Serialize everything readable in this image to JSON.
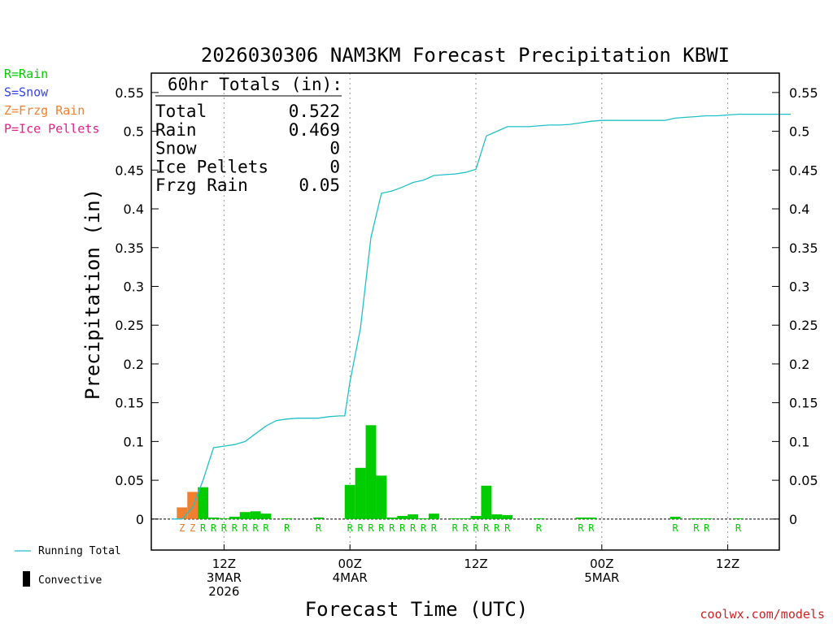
{
  "chart_data": {
    "type": "bar",
    "title": "2026030306 NAM3KM Forecast Precipitation KBWI",
    "xlabel": "Forecast Time (UTC)",
    "ylabel": "Precipitation (in)",
    "ylim": [
      -0.04,
      0.575
    ],
    "yticks": [
      "0",
      "0.05",
      "0.1",
      "0.15",
      "0.2",
      "0.25",
      "0.3",
      "0.35",
      "0.4",
      "0.45",
      "0.5",
      "0.55"
    ],
    "xlim": [
      0,
      61
    ],
    "xticks": [
      {
        "hour": 6,
        "lines": [
          "12Z",
          "3MAR",
          "2026"
        ]
      },
      {
        "hour": 18,
        "lines": [
          "00Z",
          "4MAR"
        ]
      },
      {
        "hour": 30,
        "lines": [
          "12Z"
        ]
      },
      {
        "hour": 42,
        "lines": [
          "00Z",
          "5MAR"
        ]
      },
      {
        "hour": 54,
        "lines": [
          "12Z"
        ]
      }
    ],
    "legend": [
      {
        "text": "R=Rain",
        "color": "#00cc00"
      },
      {
        "text": "S=Snow",
        "color": "#3344ee"
      },
      {
        "text": "Z=Frzg Rain",
        "color": "#f08030"
      },
      {
        "text": "P=Ice Pellets",
        "color": "#e0208a"
      }
    ],
    "bottom_legend": {
      "running_total": "Running Total",
      "convective": "Convective"
    },
    "totals_box": {
      "header": "60hr Totals (in):",
      "rows": [
        {
          "label": "Total",
          "value": "0.522"
        },
        {
          "label": "Rain",
          "value": "0.469"
        },
        {
          "label": "Snow",
          "value": "0"
        },
        {
          "label": "Ice Pellets",
          "value": "0"
        },
        {
          "label": "Frzg Rain",
          "value": "0.05"
        }
      ]
    },
    "watermark": "coolwx.com/models",
    "colors": {
      "rain": "#00cc00",
      "frzg": "#f08030",
      "running": "#20c0c8",
      "grid": "#999999"
    },
    "bars": [
      {
        "hour": 2,
        "value": 0.015,
        "ptype": "Z"
      },
      {
        "hour": 3,
        "value": 0.035,
        "ptype": "Z"
      },
      {
        "hour": 4,
        "value": 0.041,
        "ptype": "R"
      },
      {
        "hour": 5,
        "value": 0.002,
        "ptype": "R"
      },
      {
        "hour": 6,
        "value": 0.001,
        "ptype": "R"
      },
      {
        "hour": 7,
        "value": 0.003,
        "ptype": "R"
      },
      {
        "hour": 8,
        "value": 0.009,
        "ptype": "R"
      },
      {
        "hour": 9,
        "value": 0.01,
        "ptype": "R"
      },
      {
        "hour": 10,
        "value": 0.007,
        "ptype": "R"
      },
      {
        "hour": 12,
        "value": 0.001,
        "ptype": "R"
      },
      {
        "hour": 15,
        "value": 0.002,
        "ptype": "R"
      },
      {
        "hour": 18,
        "value": 0.044,
        "ptype": "R"
      },
      {
        "hour": 19,
        "value": 0.066,
        "ptype": "R"
      },
      {
        "hour": 20,
        "value": 0.121,
        "ptype": "R"
      },
      {
        "hour": 21,
        "value": 0.056,
        "ptype": "R"
      },
      {
        "hour": 22,
        "value": 0.002,
        "ptype": "R"
      },
      {
        "hour": 23,
        "value": 0.004,
        "ptype": "R"
      },
      {
        "hour": 24,
        "value": 0.006,
        "ptype": "R"
      },
      {
        "hour": 25,
        "value": 0.001,
        "ptype": "R"
      },
      {
        "hour": 26,
        "value": 0.007,
        "ptype": "R"
      },
      {
        "hour": 28,
        "value": 0.001,
        "ptype": "R"
      },
      {
        "hour": 29,
        "value": 0.001,
        "ptype": "R"
      },
      {
        "hour": 30,
        "value": 0.004,
        "ptype": "R"
      },
      {
        "hour": 31,
        "value": 0.043,
        "ptype": "R"
      },
      {
        "hour": 32,
        "value": 0.006,
        "ptype": "R"
      },
      {
        "hour": 33,
        "value": 0.005,
        "ptype": "R"
      },
      {
        "hour": 36,
        "value": 0.001,
        "ptype": "R"
      },
      {
        "hour": 40,
        "value": 0.002,
        "ptype": "R"
      },
      {
        "hour": 41,
        "value": 0.002,
        "ptype": "R"
      },
      {
        "hour": 49,
        "value": 0.003,
        "ptype": "R"
      },
      {
        "hour": 51,
        "value": 0.001,
        "ptype": "R"
      },
      {
        "hour": 52,
        "value": 0.001,
        "ptype": "R"
      },
      {
        "hour": 55,
        "value": 0.001,
        "ptype": "R"
      }
    ],
    "running_total": {
      "x": [
        1,
        2,
        3,
        4,
        5,
        6,
        7,
        8,
        9,
        10,
        11,
        12,
        13,
        14,
        15,
        16,
        17,
        17.5,
        18,
        19,
        20,
        21,
        22,
        23,
        24,
        25,
        26,
        27,
        28,
        29,
        30,
        31,
        32,
        33,
        34,
        35,
        36,
        37,
        38,
        39,
        40,
        41,
        42,
        43,
        44,
        45,
        46,
        47,
        48,
        49,
        50,
        51,
        52,
        53,
        54,
        55,
        56,
        57,
        58,
        59,
        60
      ],
      "y": [
        0,
        0,
        0.015,
        0.05,
        0.092,
        0.094,
        0.096,
        0.1,
        0.11,
        0.12,
        0.127,
        0.129,
        0.13,
        0.13,
        0.13,
        0.132,
        0.133,
        0.133,
        0.177,
        0.246,
        0.363,
        0.42,
        0.423,
        0.428,
        0.434,
        0.437,
        0.443,
        0.444,
        0.445,
        0.447,
        0.451,
        0.494,
        0.5,
        0.506,
        0.506,
        0.506,
        0.507,
        0.508,
        0.508,
        0.509,
        0.511,
        0.513,
        0.514,
        0.514,
        0.514,
        0.514,
        0.514,
        0.514,
        0.514,
        0.517,
        0.518,
        0.519,
        0.52,
        0.52,
        0.521,
        0.522,
        0.522,
        0.522,
        0.522,
        0.522,
        0.522
      ]
    }
  }
}
